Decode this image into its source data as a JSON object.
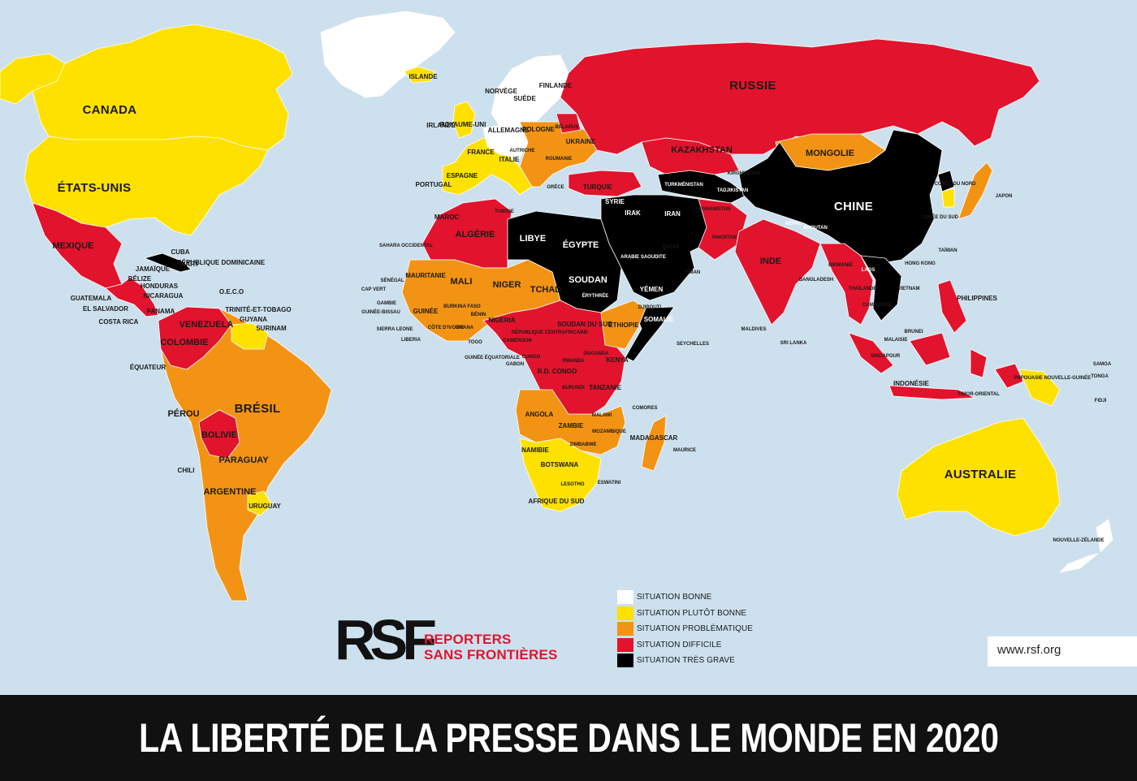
{
  "title": "LA LIBERTÉ DE LA PRESSE DANS LE MONDE EN 2020",
  "website": "www.rsf.org",
  "logo": {
    "mark": "RSF",
    "name_line1": "REPORTERS",
    "name_line2": "SANS FRONTIÈRES"
  },
  "colors": {
    "ocean": "#cde0ee",
    "bonne": "#ffffff",
    "plutot_bonne": "#ffe100",
    "problematique": "#f39314",
    "difficile": "#e2132c",
    "tres_grave": "#000000",
    "brand_red": "#e2132c"
  },
  "legend": [
    {
      "label": "SITUATION BONNE",
      "color": "#ffffff"
    },
    {
      "label": "SITUATION PLUTÔT BONNE",
      "color": "#ffe100"
    },
    {
      "label": "SITUATION PROBLÉMATIQUE",
      "color": "#f39314"
    },
    {
      "label": "SITUATION DIFFICILE",
      "color": "#e2132c"
    },
    {
      "label": "SITUATION TRÈS GRAVE",
      "color": "#000000"
    }
  ],
  "countries": [
    {
      "label": "CANADA",
      "status": "plutot_bonne"
    },
    {
      "label": "ÉTATS-UNIS",
      "status": "plutot_bonne"
    },
    {
      "label": "MEXIQUE",
      "status": "difficile"
    },
    {
      "label": "CUBA",
      "status": "tres_grave"
    },
    {
      "label": "HAÏTI",
      "status": "problematique"
    },
    {
      "label": "JAMAÏQUE",
      "status": "plutot_bonne"
    },
    {
      "label": "RÉPUBLIQUE DOMINICAINE",
      "status": "problematique"
    },
    {
      "label": "BÉLIZE",
      "status": "problematique"
    },
    {
      "label": "HONDURAS",
      "status": "difficile"
    },
    {
      "label": "NICARAGUA",
      "status": "difficile"
    },
    {
      "label": "GUATEMALA",
      "status": "difficile"
    },
    {
      "label": "EL SALVADOR",
      "status": "problematique"
    },
    {
      "label": "COSTA RICA",
      "status": "bonne"
    },
    {
      "label": "PANAMA",
      "status": "problematique"
    },
    {
      "label": "O.E.C.O",
      "status": "plutot_bonne"
    },
    {
      "label": "TRINITÉ-ET-TOBAGO",
      "status": "plutot_bonne"
    },
    {
      "label": "GUYANA",
      "status": "problematique"
    },
    {
      "label": "SURINAM",
      "status": "plutot_bonne"
    },
    {
      "label": "VENEZUELA",
      "status": "difficile"
    },
    {
      "label": "COLOMBIE",
      "status": "difficile"
    },
    {
      "label": "ÉQUATEUR",
      "status": "problematique"
    },
    {
      "label": "PÉROU",
      "status": "problematique"
    },
    {
      "label": "BRÉSIL",
      "status": "problematique"
    },
    {
      "label": "BOLIVIE",
      "status": "difficile"
    },
    {
      "label": "PARAGUAY",
      "status": "problematique"
    },
    {
      "label": "CHILI",
      "status": "problematique"
    },
    {
      "label": "ARGENTINE",
      "status": "problematique"
    },
    {
      "label": "URUGUAY",
      "status": "plutot_bonne"
    },
    {
      "label": "ISLANDE",
      "status": "plutot_bonne"
    },
    {
      "label": "NORVÈGE",
      "status": "bonne"
    },
    {
      "label": "SUÈDE",
      "status": "bonne"
    },
    {
      "label": "FINLANDE",
      "status": "bonne"
    },
    {
      "label": "IRLANDE",
      "status": "bonne"
    },
    {
      "label": "ROYAUME-UNI",
      "status": "plutot_bonne"
    },
    {
      "label": "FRANCE",
      "status": "plutot_bonne"
    },
    {
      "label": "ESPAGNE",
      "status": "plutot_bonne"
    },
    {
      "label": "PORTUGAL",
      "status": "bonne"
    },
    {
      "label": "ALLEMAGNE",
      "status": "bonne"
    },
    {
      "label": "AUTRICHE",
      "status": "plutot_bonne"
    },
    {
      "label": "ITALIE",
      "status": "plutot_bonne"
    },
    {
      "label": "POLOGNE",
      "status": "problematique"
    },
    {
      "label": "BÉLARUS",
      "status": "difficile"
    },
    {
      "label": "UKRAINE",
      "status": "problematique"
    },
    {
      "label": "ROUMANIE",
      "status": "problematique"
    },
    {
      "label": "GRÈCE",
      "status": "problematique"
    },
    {
      "label": "TURQUIE",
      "status": "difficile"
    },
    {
      "label": "RUSSIE",
      "status": "difficile"
    },
    {
      "label": "KAZAKHSTAN",
      "status": "difficile"
    },
    {
      "label": "MONGOLIE",
      "status": "problematique"
    },
    {
      "label": "CHINE",
      "status": "tres_grave"
    },
    {
      "label": "CORÉE DU NORD",
      "status": "tres_grave"
    },
    {
      "label": "CORÉE DU SUD",
      "status": "plutot_bonne"
    },
    {
      "label": "JAPON",
      "status": "problematique"
    },
    {
      "label": "TAÏWAN",
      "status": "plutot_bonne"
    },
    {
      "label": "HONG KONG",
      "status": "problematique"
    },
    {
      "label": "KIRGHIZSTAN",
      "status": "problematique"
    },
    {
      "label": "TADJIKISTAN",
      "status": "tres_grave"
    },
    {
      "label": "TURKMÉNISTAN",
      "status": "tres_grave"
    },
    {
      "label": "AFGHANISTAN",
      "status": "difficile"
    },
    {
      "label": "PAKISTAN",
      "status": "difficile"
    },
    {
      "label": "IRAN",
      "status": "tres_grave"
    },
    {
      "label": "IRAK",
      "status": "tres_grave"
    },
    {
      "label": "SYRIE",
      "status": "tres_grave"
    },
    {
      "label": "ARABIE SAOUDITE",
      "status": "tres_grave"
    },
    {
      "label": "YÉMEN",
      "status": "tres_grave"
    },
    {
      "label": "OMAN",
      "status": "difficile"
    },
    {
      "label": "QATAR",
      "status": "difficile"
    },
    {
      "label": "INDE",
      "status": "difficile"
    },
    {
      "label": "NÉPAL",
      "status": "difficile"
    },
    {
      "label": "BHOUTAN",
      "status": "problematique"
    },
    {
      "label": "BANGLADESH",
      "status": "difficile"
    },
    {
      "label": "BIRMANIE",
      "status": "difficile"
    },
    {
      "label": "THAÏLANDE",
      "status": "difficile"
    },
    {
      "label": "LAOS",
      "status": "tres_grave"
    },
    {
      "label": "VIETNAM",
      "status": "tres_grave"
    },
    {
      "label": "CAMBODGE",
      "status": "difficile"
    },
    {
      "label": "SRI LANKA",
      "status": "difficile"
    },
    {
      "label": "MALDIVES",
      "status": "difficile"
    },
    {
      "label": "PHILIPPINES",
      "status": "difficile"
    },
    {
      "label": "MALAISIE",
      "status": "difficile"
    },
    {
      "label": "SINGAPOUR",
      "status": "difficile"
    },
    {
      "label": "BRUNEI",
      "status": "difficile"
    },
    {
      "label": "INDONÉSIE",
      "status": "difficile"
    },
    {
      "label": "TIMOR-ORIENTAL",
      "status": "problematique"
    },
    {
      "label": "PAPOUASIE NOUVELLE-GUINÉE",
      "status": "plutot_bonne"
    },
    {
      "label": "AUSTRALIE",
      "status": "plutot_bonne"
    },
    {
      "label": "NOUVELLE-ZÉLANDE",
      "status": "bonne"
    },
    {
      "label": "SAMOA",
      "status": "plutot_bonne"
    },
    {
      "label": "TONGA",
      "status": "plutot_bonne"
    },
    {
      "label": "FIDJI",
      "status": "problematique"
    },
    {
      "label": "MAROC",
      "status": "difficile"
    },
    {
      "label": "SAHARA OCCIDENTAL",
      "status": "difficile"
    },
    {
      "label": "ALGÉRIE",
      "status": "difficile"
    },
    {
      "label": "TUNISIE",
      "status": "problematique"
    },
    {
      "label": "LIBYE",
      "status": "tres_grave"
    },
    {
      "label": "ÉGYPTE",
      "status": "tres_grave"
    },
    {
      "label": "MAURITANIE",
      "status": "problematique"
    },
    {
      "label": "MALI",
      "status": "problematique"
    },
    {
      "label": "NIGER",
      "status": "problematique"
    },
    {
      "label": "TCHAD",
      "status": "difficile"
    },
    {
      "label": "SOUDAN",
      "status": "tres_grave"
    },
    {
      "label": "ÉRYTHRÉE",
      "status": "tres_grave"
    },
    {
      "label": "DJIBOUTI",
      "status": "tres_grave"
    },
    {
      "label": "SOMALIE",
      "status": "tres_grave"
    },
    {
      "label": "ÉTHIOPIE",
      "status": "problematique"
    },
    {
      "label": "SÉNÉGAL",
      "status": "problematique"
    },
    {
      "label": "CAP VERT",
      "status": "plutot_bonne"
    },
    {
      "label": "GAMBIE",
      "status": "problematique"
    },
    {
      "label": "GUINÉE-BISSAU",
      "status": "problematique"
    },
    {
      "label": "GUINÉE",
      "status": "difficile"
    },
    {
      "label": "SIERRA LEONE",
      "status": "problematique"
    },
    {
      "label": "LIBERIA",
      "status": "problematique"
    },
    {
      "label": "CÔTE D'IVOIRE",
      "status": "problematique"
    },
    {
      "label": "BURKINA FASO",
      "status": "problematique"
    },
    {
      "label": "GHANA",
      "status": "plutot_bonne"
    },
    {
      "label": "TOGO",
      "status": "problematique"
    },
    {
      "label": "BÉNIN",
      "status": "problematique"
    },
    {
      "label": "NIGERIA",
      "status": "difficile"
    },
    {
      "label": "CAMEROUN",
      "status": "difficile"
    },
    {
      "label": "GUINÉE ÉQUATORIALE",
      "status": "tres_grave"
    },
    {
      "label": "GABON",
      "status": "difficile"
    },
    {
      "label": "RÉPUBLIQUE CENTRAFRICAINE",
      "status": "difficile"
    },
    {
      "label": "SOUDAN DU SUD",
      "status": "difficile"
    },
    {
      "label": "CONGO",
      "status": "difficile"
    },
    {
      "label": "R.D. CONGO",
      "status": "difficile"
    },
    {
      "label": "OUGANDA",
      "status": "difficile"
    },
    {
      "label": "KENYA",
      "status": "problematique"
    },
    {
      "label": "RWANDA",
      "status": "difficile"
    },
    {
      "label": "BURUNDI",
      "status": "difficile"
    },
    {
      "label": "TANZANIE",
      "status": "difficile"
    },
    {
      "label": "ANGOLA",
      "status": "problematique"
    },
    {
      "label": "ZAMBIE",
      "status": "difficile"
    },
    {
      "label": "MALAWI",
      "status": "problematique"
    },
    {
      "label": "MOZAMBIQUE",
      "status": "problematique"
    },
    {
      "label": "ZIMBABWE",
      "status": "difficile"
    },
    {
      "label": "NAMIBIE",
      "status": "plutot_bonne"
    },
    {
      "label": "BOTSWANA",
      "status": "plutot_bonne"
    },
    {
      "label": "AFRIQUE DU SUD",
      "status": "plutot_bonne"
    },
    {
      "label": "LESOTHO",
      "status": "problematique"
    },
    {
      "label": "ESWATINI",
      "status": "difficile"
    },
    {
      "label": "MADAGASCAR",
      "status": "problematique"
    },
    {
      "label": "COMORES",
      "status": "problematique"
    },
    {
      "label": "MAURICE",
      "status": "problematique"
    },
    {
      "label": "SEYCHELLES",
      "status": "problematique"
    }
  ],
  "regions": [
    {
      "name": "greenland",
      "status": "bonne"
    },
    {
      "name": "canada",
      "status": "plutot_bonne"
    },
    {
      "name": "alaska",
      "status": "plutot_bonne"
    },
    {
      "name": "usa",
      "status": "plutot_bonne"
    },
    {
      "name": "mexico",
      "status": "difficile"
    },
    {
      "name": "central-america",
      "status": "difficile"
    },
    {
      "name": "cuba",
      "status": "tres_grave"
    },
    {
      "name": "south-america",
      "status": "problematique"
    },
    {
      "name": "venezuela-colombia",
      "status": "difficile"
    },
    {
      "name": "bolivia",
      "status": "difficile"
    },
    {
      "name": "guianas",
      "status": "plutot_bonne"
    },
    {
      "name": "uruguay",
      "status": "plutot_bonne"
    },
    {
      "name": "iceland",
      "status": "plutot_bonne"
    },
    {
      "name": "scandinavia",
      "status": "bonne"
    },
    {
      "name": "uk",
      "status": "plutot_bonne"
    },
    {
      "name": "western-europe",
      "status": "plutot_bonne"
    },
    {
      "name": "central-europe",
      "status": "bonne"
    },
    {
      "name": "eastern-europe",
      "status": "problematique"
    },
    {
      "name": "belarus",
      "status": "difficile"
    },
    {
      "name": "turkey",
      "status": "difficile"
    },
    {
      "name": "russia",
      "status": "difficile"
    },
    {
      "name": "kazakhstan",
      "status": "difficile"
    },
    {
      "name": "central-asia",
      "status": "tres_grave"
    },
    {
      "name": "mongolia",
      "status": "problematique"
    },
    {
      "name": "china",
      "status": "tres_grave"
    },
    {
      "name": "korea-north",
      "status": "tres_grave"
    },
    {
      "name": "korea-south",
      "status": "plutot_bonne"
    },
    {
      "name": "japan",
      "status": "problematique"
    },
    {
      "name": "middle-east",
      "status": "tres_grave"
    },
    {
      "name": "afghanistan-pakistan",
      "status": "difficile"
    },
    {
      "name": "india",
      "status": "difficile"
    },
    {
      "name": "southeast-asia",
      "status": "difficile"
    },
    {
      "name": "indochina-black",
      "status": "tres_grave"
    },
    {
      "name": "philippines",
      "status": "difficile"
    },
    {
      "name": "indonesia",
      "status": "difficile"
    },
    {
      "name": "png",
      "status": "plutot_bonne"
    },
    {
      "name": "australia",
      "status": "plutot_bonne"
    },
    {
      "name": "new-zealand",
      "status": "bonne"
    },
    {
      "name": "north-africa-red",
      "status": "difficile"
    },
    {
      "name": "libya-egypt-sudan",
      "status": "tres_grave"
    },
    {
      "name": "west-africa-orange",
      "status": "problematique"
    },
    {
      "name": "central-africa",
      "status": "difficile"
    },
    {
      "name": "horn-black",
      "status": "tres_grave"
    },
    {
      "name": "ethiopia",
      "status": "problematique"
    },
    {
      "name": "southern-africa-orange",
      "status": "problematique"
    },
    {
      "name": "southern-africa-yellow",
      "status": "plutot_bonne"
    },
    {
      "name": "madagascar",
      "status": "problematique"
    }
  ]
}
